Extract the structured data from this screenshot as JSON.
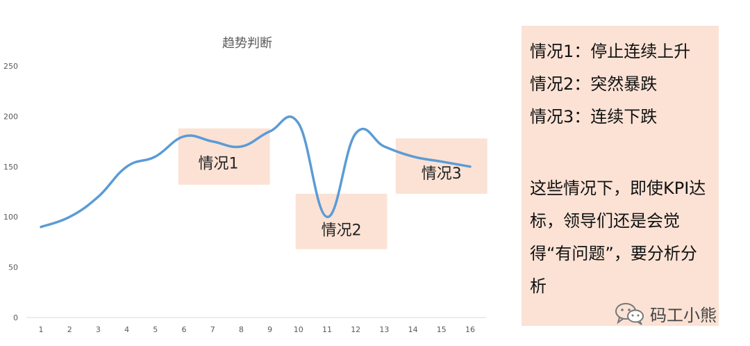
{
  "chart_data": {
    "type": "line",
    "title": "趋势判断",
    "x": [
      "1",
      "2",
      "3",
      "4",
      "5",
      "6",
      "7",
      "8",
      "9",
      "10",
      "11",
      "12",
      "13",
      "14",
      "15",
      "16"
    ],
    "series": [
      {
        "values": [
          90,
          100,
          120,
          150,
          160,
          180,
          175,
          170,
          185,
          193,
          100,
          183,
          170,
          160,
          155,
          150
        ]
      }
    ],
    "ylim": [
      0,
      250
    ],
    "yticks": [
      0,
      50,
      100,
      150,
      200,
      250
    ],
    "grid": false,
    "line_color": "#5b9bd5",
    "annotations": [
      {
        "label": "情况1",
        "x_from": 5.8,
        "x_to": 9.0,
        "y_from": 132,
        "y_to": 188,
        "label_at": [
          7.2,
          148
        ]
      },
      {
        "label": "情况2",
        "x_from": 9.9,
        "x_to": 13.1,
        "y_from": 68,
        "y_to": 123,
        "label_at": [
          11.5,
          82
        ]
      },
      {
        "label": "情况3",
        "x_from": 13.4,
        "x_to": 16.6,
        "y_from": 123,
        "y_to": 178,
        "label_at": [
          15.0,
          138
        ]
      }
    ],
    "annotation_color": "#fbe2d5"
  },
  "panel": {
    "line1": "情况1：停止连续上升",
    "line2": "情况2：突然暴跌",
    "line3": "情况3：连续下跌",
    "paragraph": "这些情况下，即使KPI达标，领导们还是会觉得“有问题”，要分析分析"
  },
  "watermark": {
    "text": "码工小熊",
    "icon": "wechat-icon"
  }
}
